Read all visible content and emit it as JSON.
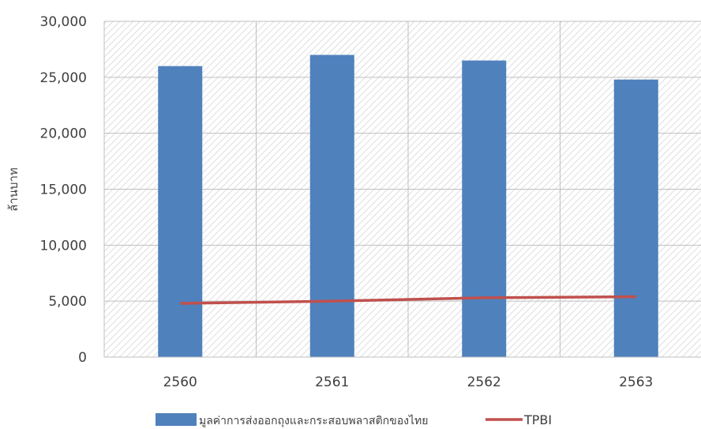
{
  "chart_data": {
    "type": "bar",
    "categories": [
      "2560",
      "2561",
      "2562",
      "2563"
    ],
    "series": [
      {
        "name": "มูลค่าการส่งออกถุงและกระสอบพลาสติกของไทย",
        "type": "bar",
        "color": "#4f81bd",
        "values": [
          26000,
          27000,
          26500,
          24800
        ]
      },
      {
        "name": "TPBI",
        "type": "line",
        "color": "#c0504d",
        "values": [
          4800,
          5000,
          5300,
          5400
        ]
      }
    ],
    "xlabel": "",
    "ylabel": "ล้านบาท",
    "ylim": [
      0,
      30000
    ],
    "yticks": [
      "0",
      "5,000",
      "10,000",
      "15,000",
      "20,000",
      "25,000",
      "30,000"
    ],
    "grid": true,
    "legend_position": "bottom"
  }
}
